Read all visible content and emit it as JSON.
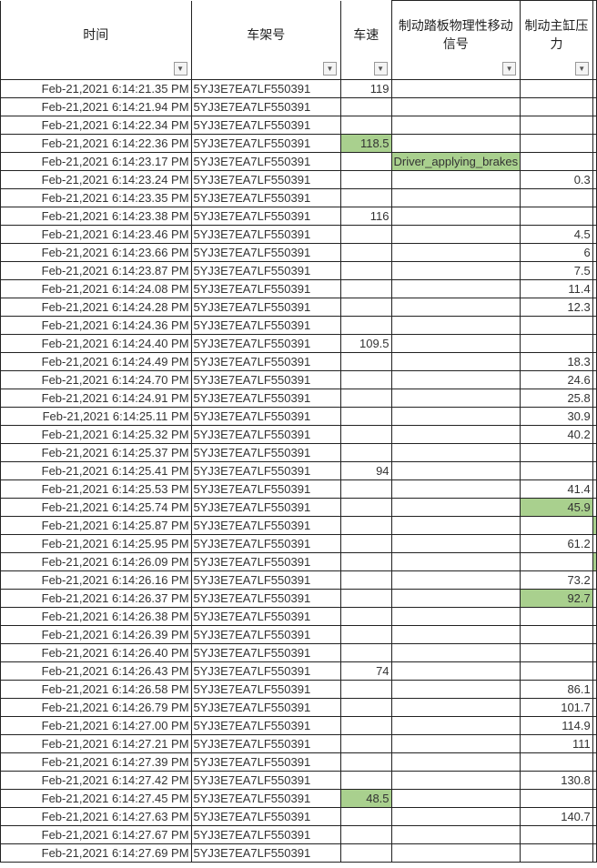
{
  "headers": [
    "时间",
    "车架号",
    "车速",
    "制动踏板物理性移动信号",
    "制动主缸压力"
  ],
  "highlight_color": "#a9d08e",
  "vin": "5YJ3E7EA7LF550391",
  "rows": [
    [
      "Feb-21,2021 6:14:21.35 PM",
      "119",
      "",
      ""
    ],
    [
      "Feb-21,2021 6:14:21.94 PM",
      "",
      "",
      ""
    ],
    [
      "Feb-21,2021 6:14:22.34 PM",
      "",
      "",
      ""
    ],
    [
      "Feb-21,2021 6:14:22.36 PM",
      "118.5",
      "",
      ""
    ],
    [
      "Feb-21,2021 6:14:23.17 PM",
      "",
      "Driver_applying_brakes",
      ""
    ],
    [
      "Feb-21,2021 6:14:23.24 PM",
      "",
      "",
      "0.3"
    ],
    [
      "Feb-21,2021 6:14:23.35 PM",
      "",
      "",
      ""
    ],
    [
      "Feb-21,2021 6:14:23.38 PM",
      "116",
      "",
      ""
    ],
    [
      "Feb-21,2021 6:14:23.46 PM",
      "",
      "",
      "4.5"
    ],
    [
      "Feb-21,2021 6:14:23.66 PM",
      "",
      "",
      "6"
    ],
    [
      "Feb-21,2021 6:14:23.87 PM",
      "",
      "",
      "7.5"
    ],
    [
      "Feb-21,2021 6:14:24.08 PM",
      "",
      "",
      "11.4"
    ],
    [
      "Feb-21,2021 6:14:24.28 PM",
      "",
      "",
      "12.3"
    ],
    [
      "Feb-21,2021 6:14:24.36 PM",
      "",
      "",
      ""
    ],
    [
      "Feb-21,2021 6:14:24.40 PM",
      "109.5",
      "",
      ""
    ],
    [
      "Feb-21,2021 6:14:24.49 PM",
      "",
      "",
      "18.3"
    ],
    [
      "Feb-21,2021 6:14:24.70 PM",
      "",
      "",
      "24.6"
    ],
    [
      "Feb-21,2021 6:14:24.91 PM",
      "",
      "",
      "25.8"
    ],
    [
      "Feb-21,2021 6:14:25.11 PM",
      "",
      "",
      "30.9"
    ],
    [
      "Feb-21,2021 6:14:25.32 PM",
      "",
      "",
      "40.2"
    ],
    [
      "Feb-21,2021 6:14:25.37 PM",
      "",
      "",
      ""
    ],
    [
      "Feb-21,2021 6:14:25.41 PM",
      "94",
      "",
      ""
    ],
    [
      "Feb-21,2021 6:14:25.53 PM",
      "",
      "",
      "41.4"
    ],
    [
      "Feb-21,2021 6:14:25.74 PM",
      "",
      "",
      "45.9"
    ],
    [
      "Feb-21,2021 6:14:25.87 PM",
      "",
      "",
      ""
    ],
    [
      "Feb-21,2021 6:14:25.95 PM",
      "",
      "",
      "61.2"
    ],
    [
      "Feb-21,2021 6:14:26.09 PM",
      "",
      "",
      ""
    ],
    [
      "Feb-21,2021 6:14:26.16 PM",
      "",
      "",
      "73.2"
    ],
    [
      "Feb-21,2021 6:14:26.37 PM",
      "",
      "",
      "92.7"
    ],
    [
      "Feb-21,2021 6:14:26.38 PM",
      "",
      "",
      ""
    ],
    [
      "Feb-21,2021 6:14:26.39 PM",
      "",
      "",
      ""
    ],
    [
      "Feb-21,2021 6:14:26.40 PM",
      "",
      "",
      ""
    ],
    [
      "Feb-21,2021 6:14:26.43 PM",
      "74",
      "",
      ""
    ],
    [
      "Feb-21,2021 6:14:26.58 PM",
      "",
      "",
      "86.1"
    ],
    [
      "Feb-21,2021 6:14:26.79 PM",
      "",
      "",
      "101.7"
    ],
    [
      "Feb-21,2021 6:14:27.00 PM",
      "",
      "",
      "114.9"
    ],
    [
      "Feb-21,2021 6:14:27.21 PM",
      "",
      "",
      "111"
    ],
    [
      "Feb-21,2021 6:14:27.39 PM",
      "",
      "",
      ""
    ],
    [
      "Feb-21,2021 6:14:27.42 PM",
      "",
      "",
      "130.8"
    ],
    [
      "Feb-21,2021 6:14:27.45 PM",
      "48.5",
      "",
      ""
    ],
    [
      "Feb-21,2021 6:14:27.63 PM",
      "",
      "",
      "140.7"
    ],
    [
      "Feb-21,2021 6:14:27.67 PM",
      "",
      "",
      ""
    ],
    [
      "Feb-21,2021 6:14:27.69 PM",
      "",
      "",
      ""
    ]
  ],
  "highlighted": [
    [
      3,
      2
    ],
    [
      4,
      3
    ],
    [
      23,
      4
    ],
    [
      28,
      4
    ],
    [
      39,
      2
    ],
    [
      24,
      5
    ],
    [
      26,
      5
    ]
  ]
}
